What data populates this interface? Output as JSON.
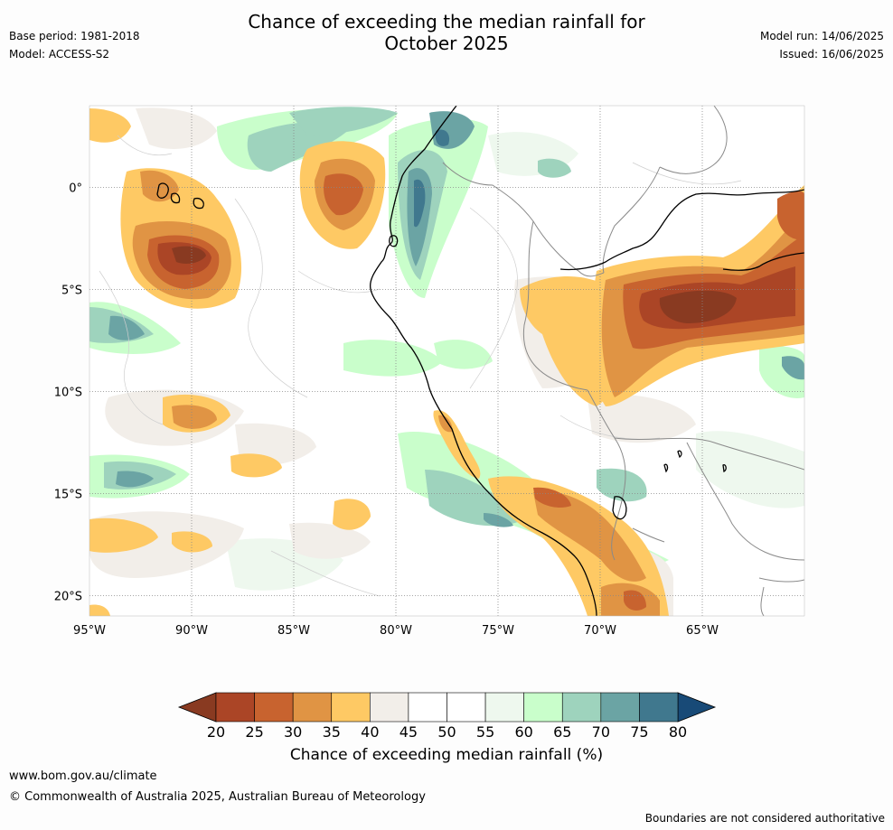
{
  "title_line1": "Chance of exceeding the median rainfall for",
  "title_line2": "October 2025",
  "base_period": "Base period: 1981-2018",
  "model": "Model: ACCESS-S2",
  "model_run": "Model run: 14/06/2025",
  "issued": "Issued: 16/06/2025",
  "map": {
    "lon_labels": [
      "95°W",
      "90°W",
      "85°W",
      "80°W",
      "75°W",
      "70°W",
      "65°W"
    ],
    "lat_labels": [
      "0°",
      "5°S",
      "10°S",
      "15°S",
      "20°S"
    ],
    "lon_values": [
      -95,
      -90,
      -85,
      -80,
      -75,
      -70,
      -65
    ],
    "lat_values": [
      0,
      -5,
      -10,
      -15,
      -20
    ],
    "lon_range": [
      -95,
      -60
    ],
    "lat_range": [
      -21,
      4
    ]
  },
  "colorbar": {
    "title": "Chance of exceeding median rainfall (%)",
    "ticks": [
      "20",
      "25",
      "30",
      "35",
      "40",
      "45",
      "50",
      "55",
      "60",
      "65",
      "70",
      "75",
      "80"
    ],
    "colors": [
      "#ab4526",
      "#c8632f",
      "#e09444",
      "#fec964",
      "#f2eee9",
      "#ffffff",
      "#ffffff",
      "#eef8ee",
      "#c9fecb",
      "#9ed3bd",
      "#6ba4a4",
      "#40788e"
    ],
    "under_color": "#893a21",
    "over_color": "#184a77"
  },
  "footer": {
    "url": "www.bom.gov.au/climate",
    "copyright": "© Commonwealth of Australia 2025, Australian Bureau of Meteorology",
    "note": "Boundaries are not considered authoritative"
  }
}
